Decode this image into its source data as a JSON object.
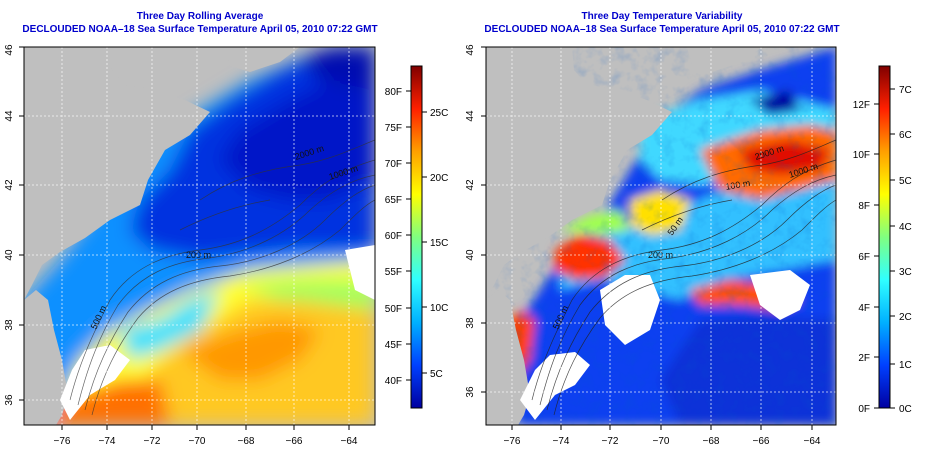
{
  "panels": [
    {
      "title": "Three Day Rolling Average",
      "subtitle": "DECLOUDED NOAA–18 Sea Surface Temperature April 05, 2010 07:22 GMT",
      "lon_ticks": [
        "−76",
        "−74",
        "−72",
        "−70",
        "−68",
        "−66",
        "−64"
      ],
      "lat_ticks": [
        "36",
        "38",
        "40",
        "42",
        "44",
        "46"
      ],
      "contour_labels": [
        "200 m",
        "1000 m",
        "2000 m",
        "500 m",
        "100 m",
        "50 m"
      ],
      "colorbar_colors": [
        "#0000a0",
        "#0040ff",
        "#00b0ff",
        "#30ffff",
        "#80ff80",
        "#ffff00",
        "#ffa000",
        "#ff2000",
        "#800000"
      ],
      "colorbar_f": [
        "40F",
        "45F",
        "50F",
        "55F",
        "60F",
        "65F",
        "70F",
        "75F",
        "80F"
      ],
      "colorbar_c": [
        "5C",
        "10C",
        "15C",
        "20C",
        "25C"
      ]
    },
    {
      "title": "Three Day Temperature Variability",
      "subtitle": "DECLOUDED NOAA–18 Sea Surface Temperature April 05, 2010 07:22 GMT",
      "lon_ticks": [
        "−76",
        "−74",
        "−72",
        "−70",
        "−68",
        "−66",
        "−64"
      ],
      "lat_ticks": [
        "36",
        "38",
        "40",
        "42",
        "44",
        "46"
      ],
      "contour_labels": [
        "200 m",
        "1000 m",
        "2000 m",
        "500 m",
        "100 m",
        "50 m"
      ],
      "colorbar_colors": [
        "#0000a0",
        "#0040ff",
        "#00b0ff",
        "#30ffff",
        "#80ff80",
        "#ffff00",
        "#ffa000",
        "#ff2000",
        "#800000"
      ],
      "colorbar_f": [
        "0F",
        "2F",
        "4F",
        "6F",
        "8F",
        "10F",
        "12F"
      ],
      "colorbar_c": [
        "0C",
        "1C",
        "2C",
        "3C",
        "4C",
        "5C",
        "6C",
        "7C"
      ]
    }
  ]
}
